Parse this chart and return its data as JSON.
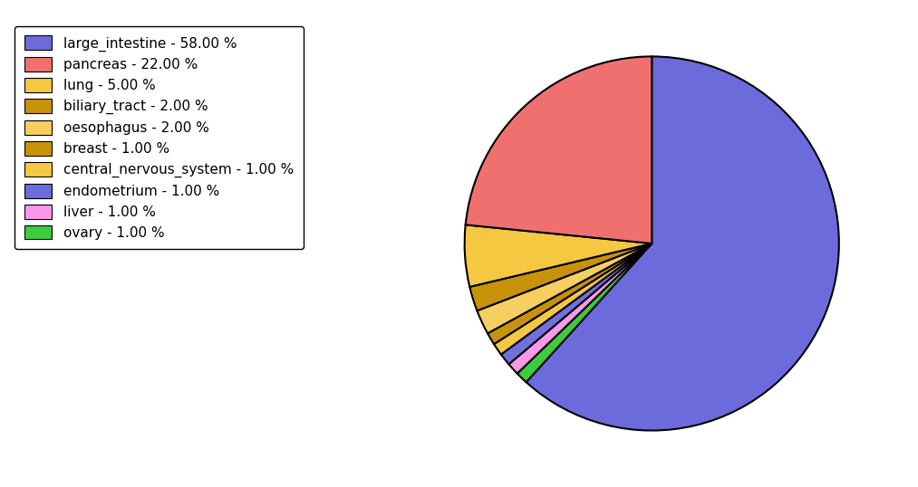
{
  "labels": [
    "large_intestine",
    "pancreas",
    "lung",
    "biliary_tract",
    "oesophagus",
    "breast",
    "central_nervous_system",
    "endometrium",
    "liver",
    "ovary"
  ],
  "values": [
    58.0,
    22.0,
    5.0,
    2.0,
    2.0,
    1.0,
    1.0,
    1.0,
    1.0,
    1.0
  ],
  "colors": [
    "#6b6bdb",
    "#f07070",
    "#f5c842",
    "#c8920a",
    "#f5d060",
    "#c8920a",
    "#f5c842",
    "#6b6bdb",
    "#f799e8",
    "#3dcc3d"
  ],
  "pie_colors": [
    "#6b6bdb",
    "#f07070",
    "#f5c842",
    "#c8920a",
    "#f5d060",
    "#c8920a",
    "#f5c842",
    "#7070dd",
    "#f799e8",
    "#3dcc3d"
  ],
  "legend_labels": [
    "large_intestine - 58.00 %",
    "pancreas - 22.00 %",
    "lung - 5.00 %",
    "biliary_tract - 2.00 %",
    "oesophagus - 2.00 %",
    "breast - 1.00 %",
    "central_nervous_system - 1.00 %",
    "endometrium - 1.00 %",
    "liver - 1.00 %",
    "ovary - 1.00 %"
  ],
  "figsize": [
    10.13,
    5.38
  ],
  "dpi": 100
}
